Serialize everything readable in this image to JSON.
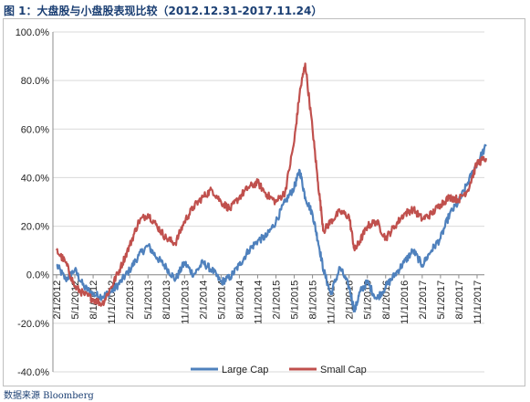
{
  "title": "图 1：大盘股与小盘股表现比较（2012.12.31-2017.11.24）",
  "source": "数据来源 Bloomberg",
  "chart_data": {
    "type": "line",
    "title": "",
    "xlabel": "",
    "ylabel": "",
    "ylim": [
      -40,
      100
    ],
    "y_ticks": [
      -40,
      -20,
      0,
      20,
      40,
      60,
      80,
      100
    ],
    "y_tick_labels": [
      "-40.0%",
      "-20.0%",
      "0.0%",
      "20.0%",
      "40.0%",
      "60.0%",
      "80.0%",
      "100.0%"
    ],
    "x_tick_labels": [
      "2/1/2012",
      "5/1/2012",
      "8/1/2012",
      "11/1/2012",
      "2/1/2013",
      "5/1/2013",
      "8/1/2013",
      "11/1/2013",
      "2/1/2014",
      "5/1/2014",
      "8/1/2014",
      "11/1/2014",
      "2/1/2015",
      "5/1/2015",
      "8/1/2015",
      "11/1/2015",
      "2/1/2016",
      "5/1/2016",
      "8/1/2016",
      "11/1/2016",
      "2/1/2017",
      "5/1/2017",
      "8/1/2017",
      "11/1/2017"
    ],
    "grid": "horizontal",
    "legend": "bottom",
    "series": [
      {
        "name": "Large Cap",
        "color": "#4f81bd",
        "points": [
          [
            0,
            4
          ],
          [
            0.5,
            -2
          ],
          [
            1,
            2
          ],
          [
            1.5,
            -5
          ],
          [
            2,
            -8
          ],
          [
            2.5,
            -9
          ],
          [
            3,
            -7
          ],
          [
            3.5,
            -3
          ],
          [
            4,
            2
          ],
          [
            4.5,
            8
          ],
          [
            5,
            12
          ],
          [
            5.5,
            7
          ],
          [
            6,
            3
          ],
          [
            6.5,
            -2
          ],
          [
            7,
            5
          ],
          [
            7.5,
            0
          ],
          [
            8,
            5
          ],
          [
            8.5,
            2
          ],
          [
            9,
            -3
          ],
          [
            9.5,
            -1
          ],
          [
            10,
            4
          ],
          [
            10.5,
            10
          ],
          [
            11,
            14
          ],
          [
            11.5,
            16
          ],
          [
            12,
            22
          ],
          [
            12.5,
            30
          ],
          [
            13,
            36
          ],
          [
            13.3,
            43
          ],
          [
            13.6,
            32
          ],
          [
            14,
            25
          ],
          [
            14.3,
            14
          ],
          [
            14.6,
            2
          ],
          [
            15,
            -8
          ],
          [
            15.5,
            3
          ],
          [
            16,
            -5
          ],
          [
            16.3,
            -15
          ],
          [
            16.6,
            -7
          ],
          [
            17,
            -3
          ],
          [
            17.5,
            -10
          ],
          [
            18,
            -5
          ],
          [
            18.5,
            0
          ],
          [
            19,
            5
          ],
          [
            19.5,
            10
          ],
          [
            20,
            4
          ],
          [
            20.5,
            10
          ],
          [
            21,
            15
          ],
          [
            21.5,
            25
          ],
          [
            22,
            30
          ],
          [
            22.5,
            38
          ],
          [
            23,
            46
          ],
          [
            23.5,
            53
          ]
        ]
      },
      {
        "name": "Small Cap",
        "color": "#c0504d",
        "points": [
          [
            0,
            10
          ],
          [
            0.5,
            5
          ],
          [
            1,
            -5
          ],
          [
            1.5,
            -8
          ],
          [
            2,
            -10
          ],
          [
            2.5,
            -12
          ],
          [
            3,
            -5
          ],
          [
            3.5,
            3
          ],
          [
            4,
            12
          ],
          [
            4.5,
            22
          ],
          [
            5,
            25
          ],
          [
            5.5,
            20
          ],
          [
            6,
            15
          ],
          [
            6.5,
            13
          ],
          [
            7,
            22
          ],
          [
            7.5,
            28
          ],
          [
            8,
            32
          ],
          [
            8.5,
            35
          ],
          [
            9,
            30
          ],
          [
            9.5,
            27
          ],
          [
            10,
            32
          ],
          [
            10.5,
            36
          ],
          [
            11,
            38
          ],
          [
            11.5,
            33
          ],
          [
            12,
            30
          ],
          [
            12.5,
            34
          ],
          [
            13,
            55
          ],
          [
            13.3,
            75
          ],
          [
            13.6,
            87
          ],
          [
            14,
            60
          ],
          [
            14.3,
            38
          ],
          [
            14.6,
            18
          ],
          [
            15,
            22
          ],
          [
            15.5,
            26
          ],
          [
            16,
            24
          ],
          [
            16.3,
            10
          ],
          [
            16.6,
            14
          ],
          [
            17,
            20
          ],
          [
            17.5,
            22
          ],
          [
            18,
            15
          ],
          [
            18.5,
            20
          ],
          [
            19,
            25
          ],
          [
            19.5,
            27
          ],
          [
            20,
            23
          ],
          [
            20.5,
            25
          ],
          [
            21,
            29
          ],
          [
            21.5,
            32
          ],
          [
            22,
            31
          ],
          [
            22.5,
            35
          ],
          [
            23,
            46
          ],
          [
            23.5,
            48
          ]
        ]
      }
    ]
  }
}
